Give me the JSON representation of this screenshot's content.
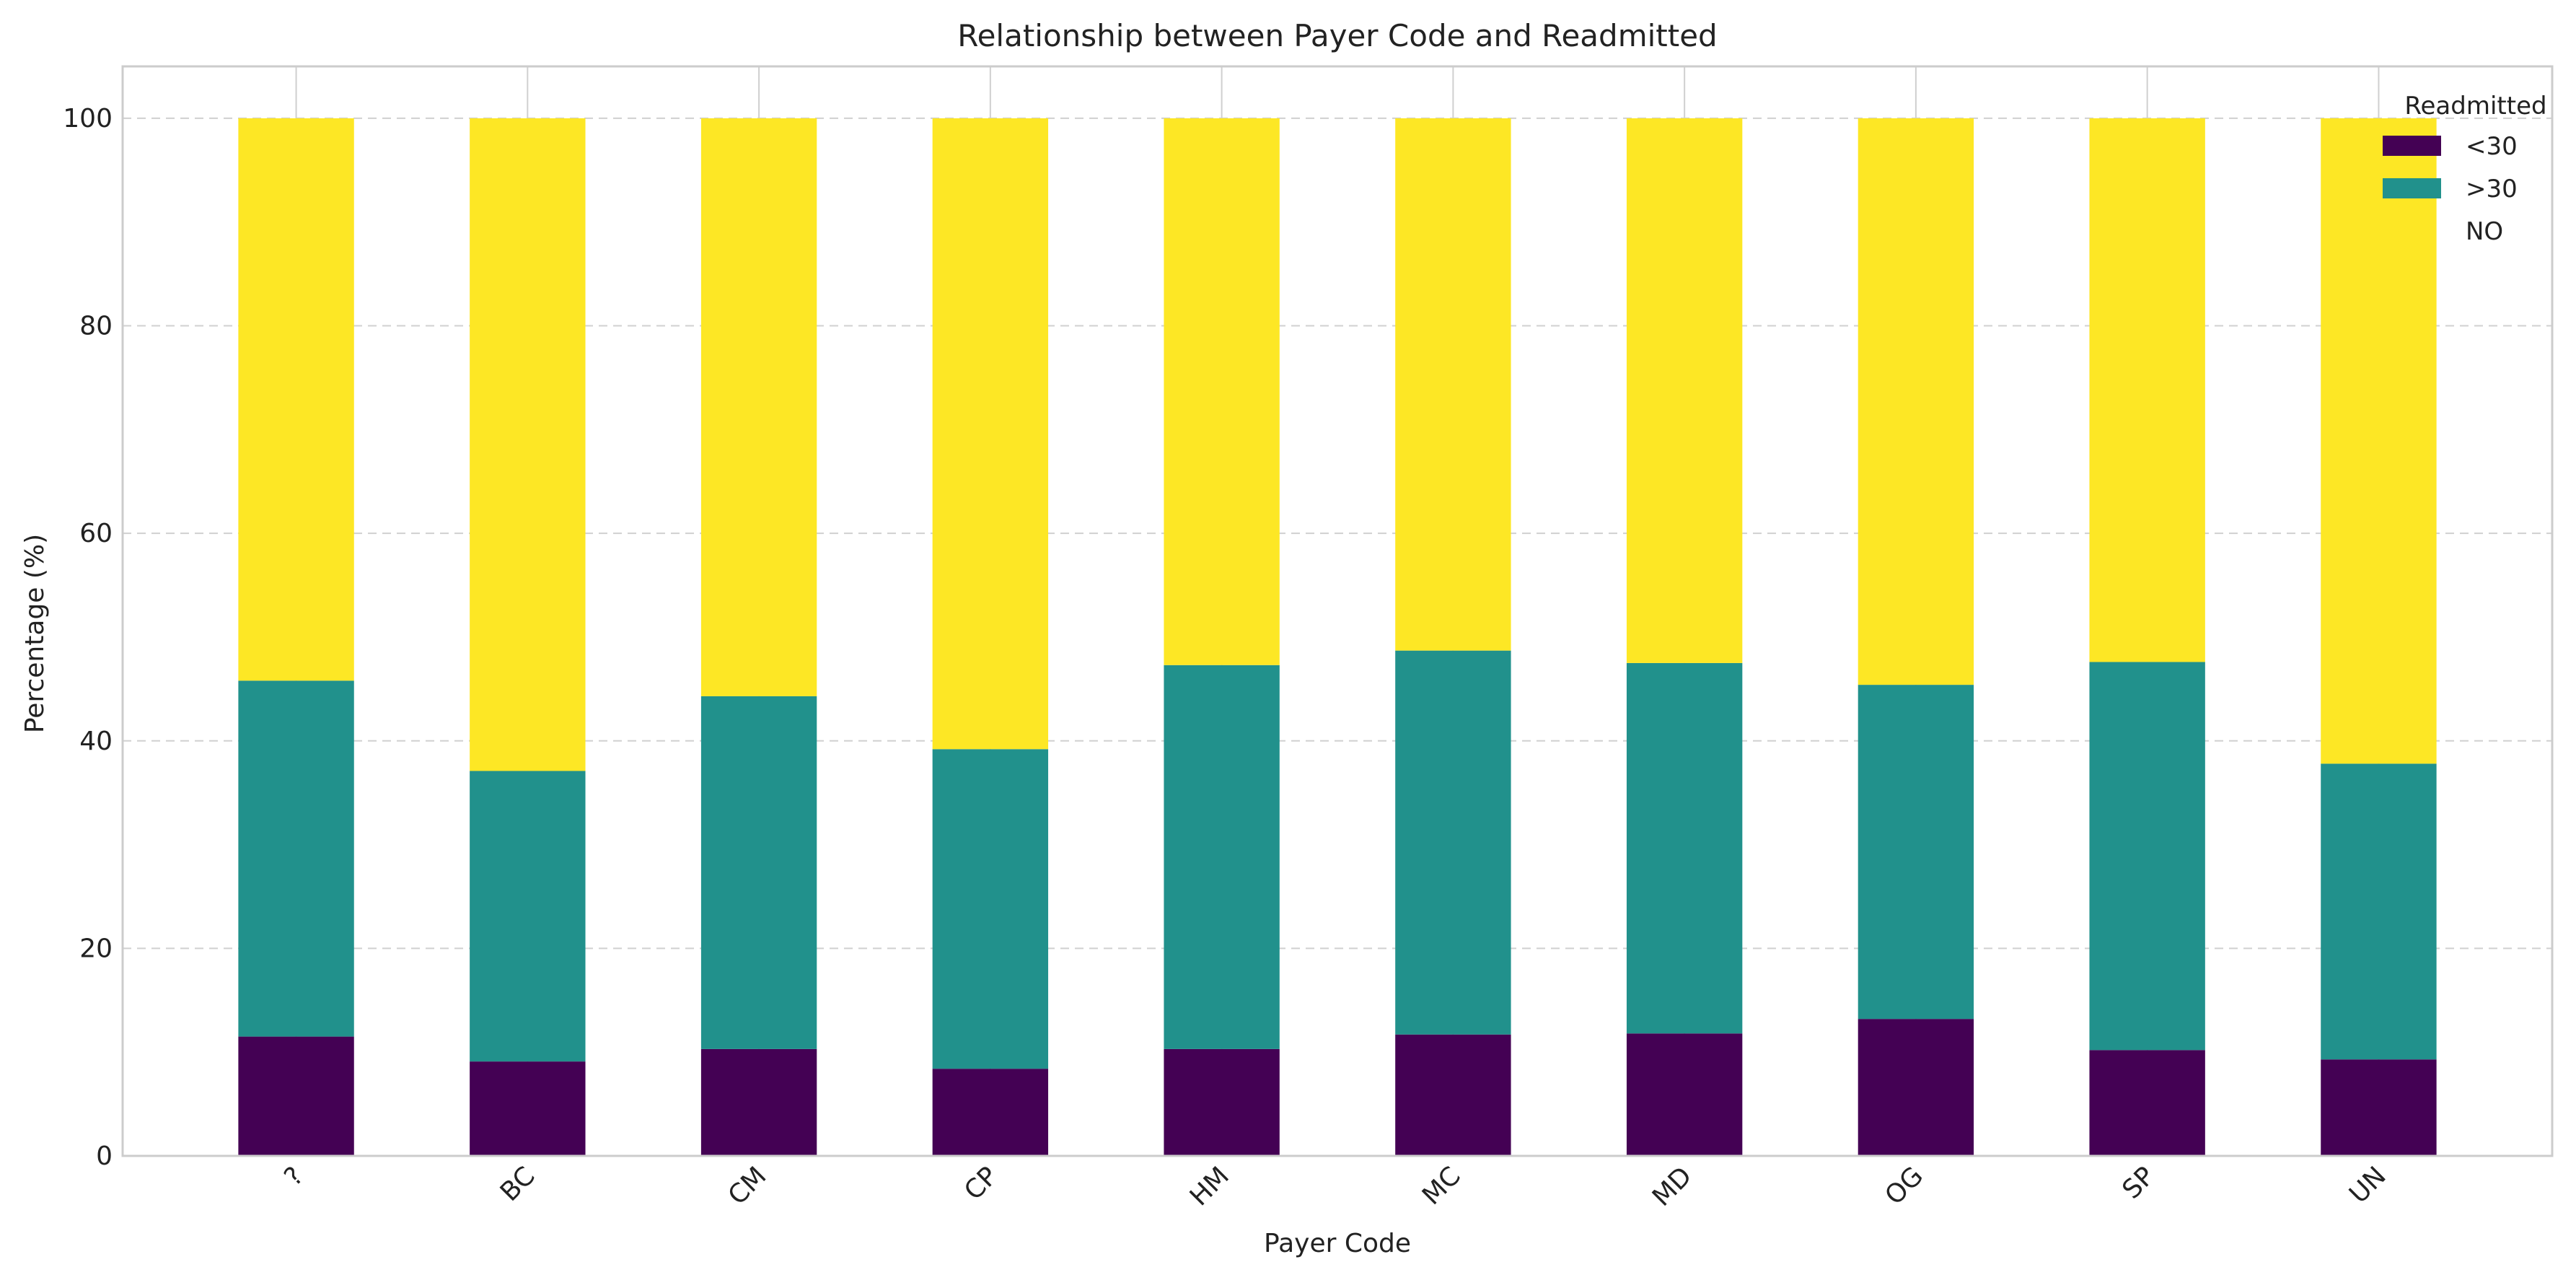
{
  "chart_data": {
    "type": "bar",
    "stacked": true,
    "title": "Relationship between Payer Code and Readmitted",
    "xlabel": "Payer Code",
    "ylabel": "Percentage (%)",
    "ylim": [
      0,
      105
    ],
    "yticks": [
      0,
      20,
      40,
      60,
      80,
      100
    ],
    "grid": true,
    "legend": {
      "title": "Readmitted",
      "placement": "top-right"
    },
    "categories": [
      "?",
      "BC",
      "CM",
      "CP",
      "HM",
      "MC",
      "MD",
      "OG",
      "SP",
      "UN"
    ],
    "series": [
      {
        "name": "<30",
        "color": "#440154",
        "values": [
          11.5,
          9.1,
          10.3,
          8.4,
          10.3,
          11.7,
          11.8,
          13.2,
          10.2,
          9.3
        ]
      },
      {
        "name": ">30",
        "color": "#21918c",
        "values": [
          34.3,
          28.0,
          34.0,
          30.8,
          37.0,
          37.0,
          35.7,
          32.2,
          37.4,
          28.5
        ]
      },
      {
        "name": "NO",
        "color": "#fde725",
        "values": [
          54.2,
          62.9,
          55.7,
          60.8,
          52.7,
          51.3,
          52.5,
          54.6,
          52.4,
          62.2
        ]
      }
    ]
  }
}
